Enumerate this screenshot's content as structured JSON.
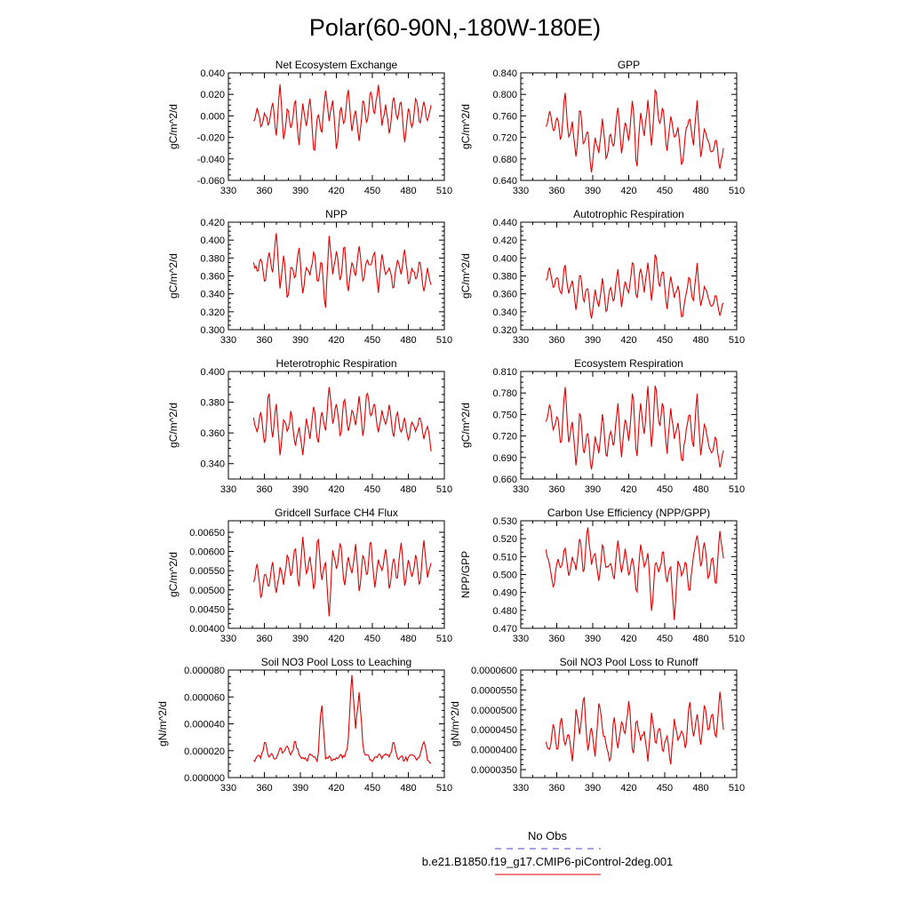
{
  "figure": {
    "title": "Polar(60-90N,-180W-180E)",
    "legend": [
      {
        "label": "No Obs",
        "color": "#4444cc",
        "dash": "dashed"
      },
      {
        "label": "b.e21.B1850.f19_g17.CMIP6-piControl-2deg.001",
        "color": "#e00000",
        "dash": "solid"
      }
    ]
  },
  "chart_data": [
    {
      "type": "line",
      "title": "Net Ecosystem Exchange",
      "ylabel": "gC/m^2/d",
      "xlim": [
        330,
        510
      ],
      "ylim": [
        -0.06,
        0.04
      ],
      "xticks": [
        "330",
        "360",
        "390",
        "420",
        "450",
        "480",
        "510"
      ],
      "yticks": [
        "-0.060",
        "-0.040",
        "-0.020",
        "0.000",
        "0.020",
        "0.040"
      ],
      "ytick_values": [
        -0.06,
        -0.04,
        -0.02,
        0,
        0.02,
        0.04
      ],
      "color": "#e00000",
      "x_start": 351,
      "x_end": 499,
      "anchors": [
        -0.005,
        0.008,
        -0.012,
        0.005,
        -0.01,
        0.015,
        -0.02,
        0.03,
        -0.025,
        0.01,
        -0.015,
        0.02,
        -0.03,
        0.012,
        -0.01,
        0.018,
        -0.038,
        0.005,
        -0.02,
        0.025,
        -0.005,
        0.015,
        -0.035,
        0.01,
        -0.01,
        0.028,
        -0.015,
        0.005,
        -0.025,
        0.018,
        -0.01,
        0.025,
        0.0,
        0.03,
        -0.01,
        0.012,
        -0.02,
        0.02,
        -0.005,
        0.015,
        -0.025,
        0.008,
        -0.012,
        0.02,
        -0.01,
        0.015,
        -0.005,
        0.01
      ]
    },
    {
      "type": "line",
      "title": "GPP",
      "ylabel": "gC/m^2/d",
      "xlim": [
        330,
        510
      ],
      "ylim": [
        0.64,
        0.84
      ],
      "xticks": [
        "330",
        "360",
        "390",
        "420",
        "450",
        "480",
        "510"
      ],
      "yticks": [
        "0.640",
        "0.680",
        "0.720",
        "0.760",
        "0.800",
        "0.840"
      ],
      "ytick_values": [
        0.64,
        0.68,
        0.72,
        0.76,
        0.8,
        0.84
      ],
      "color": "#e00000",
      "x_start": 351,
      "x_end": 499,
      "anchors": [
        0.74,
        0.77,
        0.73,
        0.76,
        0.71,
        0.81,
        0.72,
        0.75,
        0.68,
        0.78,
        0.7,
        0.74,
        0.65,
        0.72,
        0.69,
        0.76,
        0.67,
        0.73,
        0.7,
        0.78,
        0.69,
        0.75,
        0.71,
        0.8,
        0.65,
        0.77,
        0.72,
        0.79,
        0.7,
        0.82,
        0.74,
        0.78,
        0.69,
        0.76,
        0.72,
        0.74,
        0.66,
        0.73,
        0.76,
        0.7,
        0.79,
        0.68,
        0.74,
        0.71,
        0.69,
        0.72,
        0.66,
        0.7
      ]
    },
    {
      "type": "line",
      "title": "NPP",
      "ylabel": "gC/m^2/d",
      "xlim": [
        330,
        510
      ],
      "ylim": [
        0.3,
        0.42
      ],
      "xticks": [
        "330",
        "360",
        "390",
        "420",
        "450",
        "480",
        "510"
      ],
      "yticks": [
        "0.300",
        "0.320",
        "0.340",
        "0.360",
        "0.380",
        "0.400",
        "0.420"
      ],
      "ytick_values": [
        0.3,
        0.32,
        0.34,
        0.36,
        0.38,
        0.4,
        0.42
      ],
      "color": "#e00000",
      "x_start": 351,
      "x_end": 499,
      "anchors": [
        0.375,
        0.365,
        0.38,
        0.35,
        0.39,
        0.36,
        0.41,
        0.345,
        0.385,
        0.33,
        0.375,
        0.355,
        0.395,
        0.34,
        0.37,
        0.36,
        0.39,
        0.35,
        0.38,
        0.32,
        0.405,
        0.36,
        0.39,
        0.35,
        0.4,
        0.34,
        0.375,
        0.36,
        0.395,
        0.35,
        0.38,
        0.37,
        0.39,
        0.34,
        0.385,
        0.36,
        0.37,
        0.345,
        0.38,
        0.36,
        0.39,
        0.35,
        0.37,
        0.355,
        0.38,
        0.34,
        0.37,
        0.35
      ]
    },
    {
      "type": "line",
      "title": "Autotrophic Respiration",
      "ylabel": "gC/m^2/d",
      "xlim": [
        330,
        510
      ],
      "ylim": [
        0.32,
        0.44
      ],
      "xticks": [
        "330",
        "360",
        "390",
        "420",
        "450",
        "480",
        "510"
      ],
      "yticks": [
        "0.320",
        "0.340",
        "0.360",
        "0.380",
        "0.400",
        "0.420",
        "0.440"
      ],
      "ytick_values": [
        0.32,
        0.34,
        0.36,
        0.38,
        0.4,
        0.42,
        0.44
      ],
      "color": "#e00000",
      "x_start": 351,
      "x_end": 499,
      "anchors": [
        0.375,
        0.39,
        0.365,
        0.38,
        0.355,
        0.395,
        0.36,
        0.375,
        0.34,
        0.385,
        0.35,
        0.37,
        0.33,
        0.365,
        0.345,
        0.38,
        0.335,
        0.37,
        0.35,
        0.39,
        0.345,
        0.375,
        0.36,
        0.4,
        0.35,
        0.39,
        0.36,
        0.395,
        0.35,
        0.41,
        0.365,
        0.39,
        0.34,
        0.38,
        0.355,
        0.37,
        0.33,
        0.36,
        0.38,
        0.35,
        0.395,
        0.345,
        0.37,
        0.355,
        0.345,
        0.36,
        0.335,
        0.35
      ]
    },
    {
      "type": "line",
      "title": "Heterotrophic Respiration",
      "ylabel": "gC/m^2/d",
      "xlim": [
        330,
        510
      ],
      "ylim": [
        0.33,
        0.4
      ],
      "xticks": [
        "330",
        "360",
        "390",
        "420",
        "450",
        "480",
        "510"
      ],
      "yticks": [
        "0.340",
        "0.360",
        "0.380",
        "0.400"
      ],
      "ytick_values": [
        0.34,
        0.36,
        0.38,
        0.4
      ],
      "color": "#e00000",
      "x_start": 351,
      "x_end": 499,
      "anchors": [
        0.37,
        0.36,
        0.375,
        0.35,
        0.39,
        0.355,
        0.38,
        0.345,
        0.37,
        0.36,
        0.375,
        0.35,
        0.365,
        0.345,
        0.37,
        0.355,
        0.38,
        0.35,
        0.375,
        0.36,
        0.39,
        0.365,
        0.38,
        0.355,
        0.385,
        0.36,
        0.375,
        0.365,
        0.385,
        0.355,
        0.39,
        0.37,
        0.38,
        0.36,
        0.375,
        0.365,
        0.38,
        0.355,
        0.375,
        0.36,
        0.37,
        0.355,
        0.368,
        0.36,
        0.372,
        0.355,
        0.365,
        0.348
      ]
    },
    {
      "type": "line",
      "title": "Ecosystem Respiration",
      "ylabel": "gC/m^2/d",
      "xlim": [
        330,
        510
      ],
      "ylim": [
        0.66,
        0.81
      ],
      "xticks": [
        "330",
        "360",
        "390",
        "420",
        "450",
        "480",
        "510"
      ],
      "yticks": [
        "0.660",
        "0.690",
        "0.720",
        "0.750",
        "0.780",
        "0.810"
      ],
      "ytick_values": [
        0.66,
        0.69,
        0.72,
        0.75,
        0.78,
        0.81
      ],
      "color": "#e00000",
      "x_start": 351,
      "x_end": 499,
      "anchors": [
        0.74,
        0.765,
        0.725,
        0.75,
        0.7,
        0.795,
        0.71,
        0.74,
        0.675,
        0.76,
        0.69,
        0.73,
        0.67,
        0.72,
        0.695,
        0.755,
        0.685,
        0.73,
        0.705,
        0.77,
        0.69,
        0.745,
        0.71,
        0.79,
        0.68,
        0.77,
        0.72,
        0.79,
        0.7,
        0.8,
        0.73,
        0.77,
        0.69,
        0.76,
        0.715,
        0.74,
        0.68,
        0.725,
        0.755,
        0.7,
        0.78,
        0.69,
        0.74,
        0.71,
        0.695,
        0.72,
        0.675,
        0.7
      ]
    },
    {
      "type": "line",
      "title": "Gridcell Surface CH4 Flux",
      "ylabel": "gC/m^2/d",
      "xlim": [
        330,
        510
      ],
      "ylim": [
        0.004,
        0.0068
      ],
      "xticks": [
        "330",
        "360",
        "390",
        "420",
        "450",
        "480",
        "510"
      ],
      "yticks": [
        "0.00400",
        "0.00450",
        "0.00500",
        "0.00550",
        "0.00600",
        "0.00650"
      ],
      "ytick_values": [
        0.004,
        0.0045,
        0.005,
        0.0055,
        0.006,
        0.0065
      ],
      "color": "#e00000",
      "x_start": 351,
      "x_end": 499,
      "anchors": [
        0.0052,
        0.0057,
        0.0047,
        0.0055,
        0.005,
        0.0058,
        0.0049,
        0.0056,
        0.0051,
        0.006,
        0.0053,
        0.0062,
        0.005,
        0.0064,
        0.0054,
        0.0059,
        0.0049,
        0.0065,
        0.0052,
        0.0058,
        0.0043,
        0.0061,
        0.0055,
        0.0063,
        0.005,
        0.0059,
        0.0054,
        0.0062,
        0.0049,
        0.006,
        0.0053,
        0.0064,
        0.005,
        0.0058,
        0.0055,
        0.0061,
        0.0049,
        0.0059,
        0.0052,
        0.0063,
        0.0051,
        0.0058,
        0.0053,
        0.006,
        0.005,
        0.0064,
        0.0053,
        0.0057
      ]
    },
    {
      "type": "line",
      "title": "Carbon Use Efficiency (NPP/GPP)",
      "ylabel": "NPP/GPP",
      "xlim": [
        330,
        510
      ],
      "ylim": [
        0.47,
        0.53
      ],
      "xticks": [
        "330",
        "360",
        "390",
        "420",
        "450",
        "480",
        "510"
      ],
      "yticks": [
        "0.470",
        "0.480",
        "0.490",
        "0.500",
        "0.510",
        "0.520",
        "0.530"
      ],
      "ytick_values": [
        0.47,
        0.48,
        0.49,
        0.5,
        0.51,
        0.52,
        0.53
      ],
      "color": "#e00000",
      "x_start": 351,
      "x_end": 499,
      "anchors": [
        0.514,
        0.505,
        0.492,
        0.508,
        0.503,
        0.516,
        0.499,
        0.51,
        0.502,
        0.522,
        0.497,
        0.529,
        0.505,
        0.512,
        0.496,
        0.518,
        0.502,
        0.508,
        0.495,
        0.52,
        0.501,
        0.515,
        0.498,
        0.511,
        0.486,
        0.518,
        0.504,
        0.512,
        0.478,
        0.509,
        0.5,
        0.515,
        0.495,
        0.505,
        0.474,
        0.51,
        0.498,
        0.508,
        0.489,
        0.51,
        0.522,
        0.504,
        0.519,
        0.495,
        0.512,
        0.492,
        0.525,
        0.509
      ]
    },
    {
      "type": "line",
      "title": "Soil NO3 Pool Loss to Leaching",
      "ylabel": "gN/m^2/d",
      "xlim": [
        330,
        510
      ],
      "ylim": [
        0,
        8e-05
      ],
      "xticks": [
        "330",
        "360",
        "390",
        "420",
        "450",
        "480",
        "510"
      ],
      "yticks": [
        "0.000000",
        "0.000020",
        "0.000040",
        "0.000060",
        "0.000080"
      ],
      "ytick_values": [
        0,
        2e-05,
        4e-05,
        6e-05,
        8e-05
      ],
      "color": "#e00000",
      "x_start": 351,
      "x_end": 499,
      "anchors": [
        1.3e-05,
        1.6e-05,
        1.4e-05,
        2.8e-05,
        1.5e-05,
        1.7e-05,
        1.4e-05,
        2.2e-05,
        1.9e-05,
        2.4e-05,
        1.6e-05,
        2.8e-05,
        1.7e-05,
        1.5e-05,
        1.3e-05,
        1.8e-05,
        1.5e-05,
        1.2e-05,
        5.8e-05,
        1.4e-05,
        1.6e-05,
        1.3e-05,
        1.5e-05,
        1.7e-05,
        1.4e-05,
        2.5e-05,
        7.8e-05,
        3.6e-05,
        6.5e-05,
        2.1e-05,
        1.6e-05,
        1.3e-05,
        1.5e-05,
        1.7e-05,
        1.4e-05,
        1.8e-05,
        1.5e-05,
        2.6e-05,
        1.4e-05,
        1.6e-05,
        1.3e-05,
        1.5e-05,
        1.7e-05,
        1.4e-05,
        1.6e-05,
        2.8e-05,
        1.3e-05,
        1.1e-05
      ]
    },
    {
      "type": "line",
      "title": "Soil NO3 Pool Loss to Runoff",
      "ylabel": "gN/m^2/d",
      "xlim": [
        330,
        510
      ],
      "ylim": [
        3.3e-05,
        6e-05
      ],
      "xticks": [
        "330",
        "360",
        "390",
        "420",
        "450",
        "480",
        "510"
      ],
      "yticks": [
        "0.0000350",
        "0.0000400",
        "0.0000450",
        "0.0000500",
        "0.0000550",
        "0.0000600"
      ],
      "ytick_values": [
        3.5e-05,
        4e-05,
        4.5e-05,
        5e-05,
        5.5e-05,
        6e-05
      ],
      "color": "#e00000",
      "x_start": 351,
      "x_end": 499,
      "anchors": [
        4.2e-05,
        4e-05,
        4.7e-05,
        3.9e-05,
        4.9e-05,
        4.1e-05,
        4.4e-05,
        3.7e-05,
        5.1e-05,
        4.3e-05,
        5.5e-05,
        3.9e-05,
        4.6e-05,
        3.8e-05,
        5.2e-05,
        4.5e-05,
        4.1e-05,
        3.6e-05,
        4.9e-05,
        4e-05,
        4.7e-05,
        4.4e-05,
        5.3e-05,
        3.8e-05,
        4.8e-05,
        4.2e-05,
        4.5e-05,
        3.7e-05,
        5e-05,
        4.1e-05,
        4.6e-05,
        3.9e-05,
        4.4e-05,
        3.6e-05,
        4.8e-05,
        4.2e-05,
        4.5e-05,
        4e-05,
        5.3e-05,
        4.3e-05,
        4.9e-05,
        4.1e-05,
        5.2e-05,
        4.4e-05,
        5e-05,
        4.2e-05,
        5.5e-05,
        4.5e-05
      ]
    }
  ]
}
